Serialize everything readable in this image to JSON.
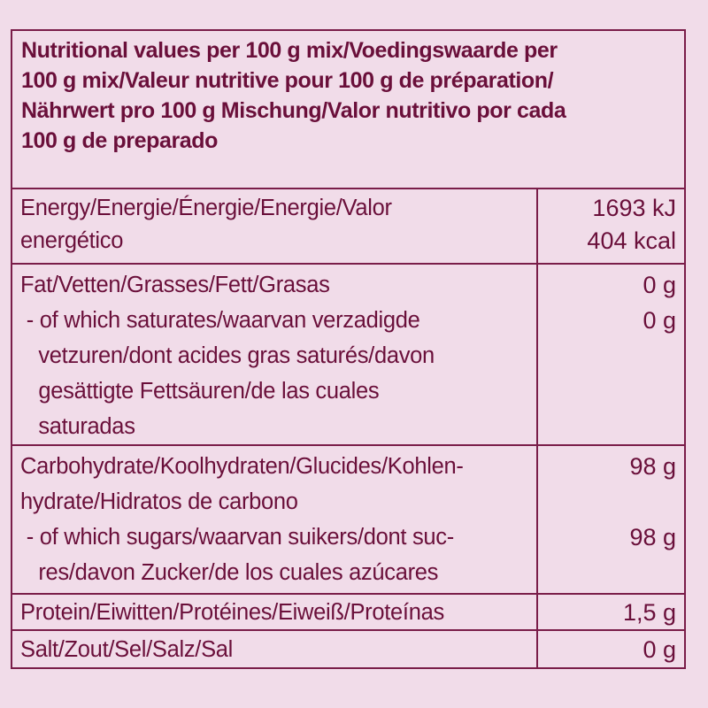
{
  "header": {
    "lines": [
      "Nutritional values per 100 g mix/Voedingswaarde per",
      "100 g mix/Valeur nutritive pour 100 g de préparation/",
      "Nährwert pro 100 g Mischung/Valor nutritivo por cada",
      "100 g de preparado"
    ]
  },
  "rows": [
    {
      "label": [
        "Energy/Energie/Énergie/Energie/Valor",
        "energético"
      ],
      "values": [
        "1693 kJ",
        "404 kcal"
      ]
    },
    {
      "label": [
        "Fat/Vetten/Grasses/Fett/Grasas",
        " - of which saturates/waarvan verzadigde",
        "   vetzuren/dont acides gras saturés/davon",
        "   gesättigte Fettsäuren/de las cuales",
        "   saturadas"
      ],
      "values": [
        "0 g",
        "0 g"
      ]
    },
    {
      "label": [
        "Carbohydrate/Koolhydraten/Glucides/Kohlen-",
        "hydrate/Hidratos de carbono",
        " - of which sugars/waarvan suikers/dont suc-",
        "   res/davon Zucker/de los cuales azúcares"
      ],
      "values": [
        "98 g",
        "",
        "98 g"
      ]
    },
    {
      "label": [
        "Protein/Eiwitten/Protéines/Eiweiß/Proteínas"
      ],
      "values": [
        "1,5 g"
      ]
    },
    {
      "label": [
        "Salt/Zout/Sel/Salz/Sal"
      ],
      "values": [
        "0 g"
      ]
    }
  ],
  "colors": {
    "background": "#f1dce9",
    "text": "#6a0f3a",
    "border": "#7a1d49"
  }
}
